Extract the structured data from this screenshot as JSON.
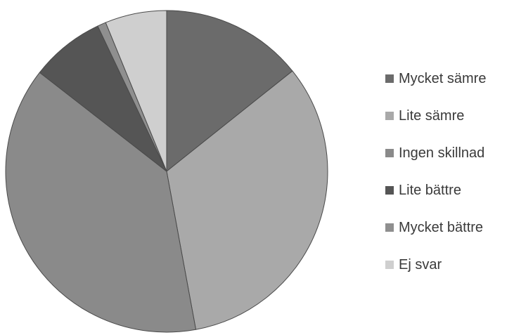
{
  "chart_data": {
    "type": "pie",
    "title": "",
    "start_angle_deg": 0,
    "direction": "clockwise",
    "legend_position": "right",
    "slices": [
      {
        "label": "Mycket sämre",
        "value": 15.0,
        "color": "#6b6b6b"
      },
      {
        "label": "Lite sämre",
        "value": 34.5,
        "color": "#a9a9a9"
      },
      {
        "label": "Ingen skillnad",
        "value": 40.4,
        "color": "#8a8a8a"
      },
      {
        "label": "Lite bättre",
        "value": 7.8,
        "color": "#555555"
      },
      {
        "label": "Mycket bättre",
        "value": 0.9,
        "color": "#8f8f8f"
      },
      {
        "label": "Ej svar",
        "value": 6.5,
        "color": "#cfcfcf"
      }
    ]
  }
}
